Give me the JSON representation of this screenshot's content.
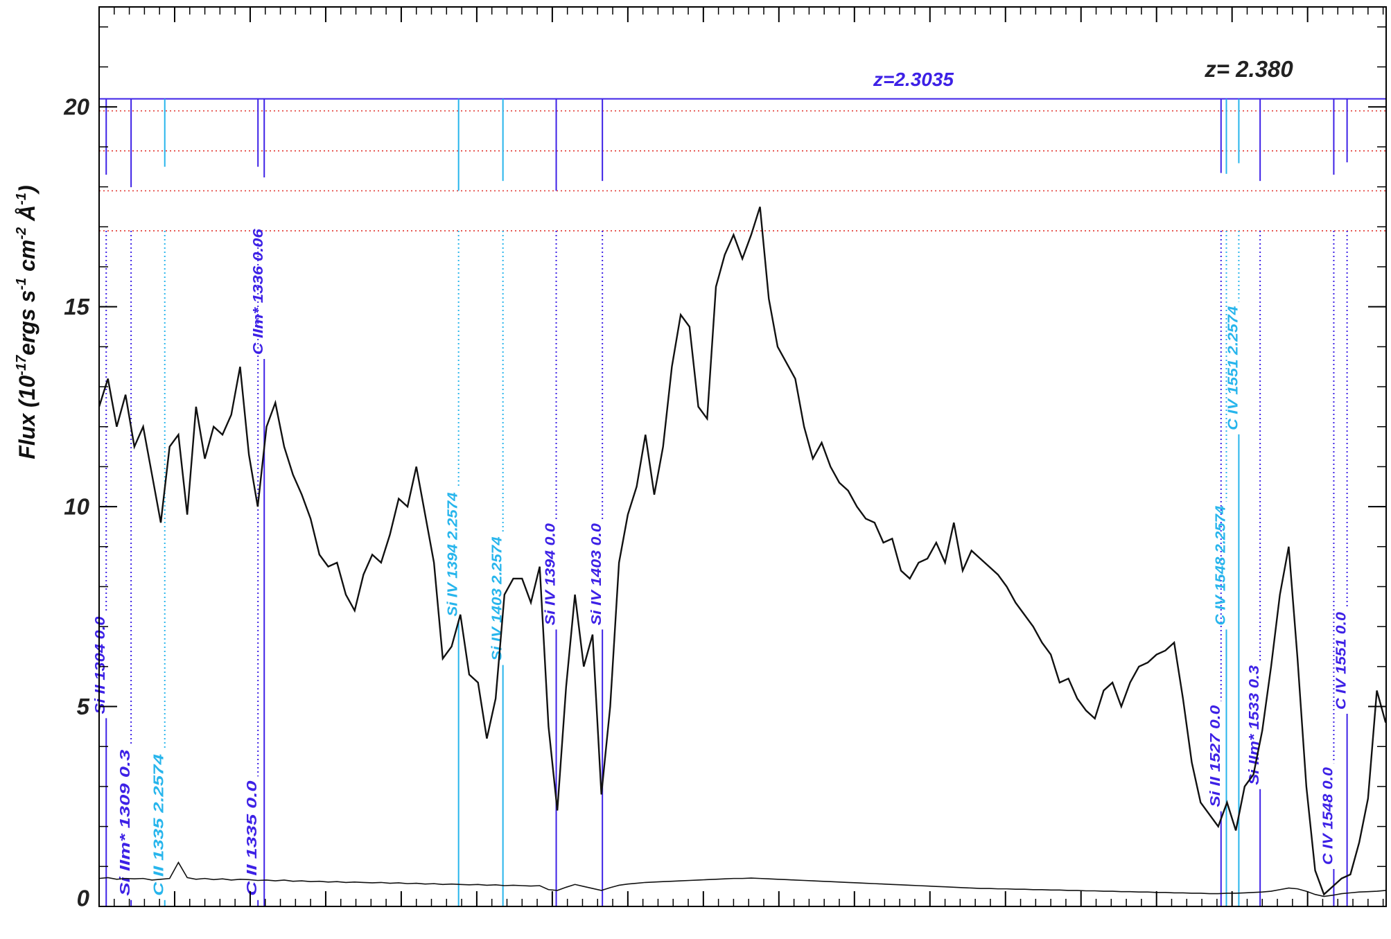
{
  "chart_data": {
    "type": "line",
    "ylabel": [
      "Flux (10",
      "-17",
      "ergs s",
      "-1",
      " cm",
      "-2",
      " Å",
      "-1",
      ")"
    ],
    "annotations": [
      {
        "text": "z=2.3035",
        "color": "#3d21e6"
      },
      {
        "text": "z= 2.380",
        "color": "#222222"
      }
    ],
    "xlim": [
      1305,
      1560.6
    ],
    "xticks": [
      1320,
      1335,
      1350,
      1365,
      1380,
      1395,
      1410,
      1425,
      1440,
      1455,
      1470,
      1485,
      1500,
      1515,
      1530,
      1545
    ],
    "ylim": [
      0,
      22.5
    ],
    "yticks": [
      0,
      5,
      10,
      15,
      20
    ],
    "x": [
      1305,
      1306.75,
      1308.5,
      1310.25,
      1312,
      1313.75,
      1315.5,
      1317.25,
      1319,
      1320.75,
      1322.5,
      1324.25,
      1326,
      1327.75,
      1329.5,
      1331.25,
      1333,
      1334.75,
      1336.5,
      1338.25,
      1340,
      1341.75,
      1343.5,
      1345.25,
      1347,
      1348.75,
      1350.5,
      1352.25,
      1354,
      1355.75,
      1357.5,
      1359.25,
      1361,
      1362.75,
      1364.5,
      1366.25,
      1368,
      1369.75,
      1371.5,
      1373.25,
      1375,
      1376.75,
      1378.5,
      1380.25,
      1382,
      1383.75,
      1385.5,
      1387.25,
      1389,
      1390.75,
      1392.5,
      1394.25,
      1396,
      1397.75,
      1399.5,
      1401.25,
      1403,
      1404.75,
      1406.5,
      1408.25,
      1410,
      1411.75,
      1413.5,
      1415.25,
      1417,
      1418.75,
      1420.5,
      1422.25,
      1424,
      1425.75,
      1427.5,
      1429.25,
      1431,
      1432.75,
      1434.5,
      1436.25,
      1438,
      1439.75,
      1441.5,
      1443.25,
      1445,
      1446.75,
      1448.5,
      1450.25,
      1452,
      1453.75,
      1455.5,
      1457.25,
      1459,
      1460.75,
      1462.5,
      1464.25,
      1466,
      1467.75,
      1469.5,
      1471.25,
      1473,
      1474.75,
      1476.5,
      1478.25,
      1480,
      1481.75,
      1483.5,
      1485.25,
      1487,
      1488.75,
      1490.5,
      1492.25,
      1494,
      1495.75,
      1497.5,
      1499.25,
      1501,
      1502.75,
      1504.5,
      1506.25,
      1508,
      1509.75,
      1511.5,
      1513.25,
      1515,
      1516.75,
      1518.5,
      1520.25,
      1522,
      1523.75,
      1525.5,
      1527.25,
      1529,
      1530.75,
      1532.5,
      1534.25,
      1536,
      1537.75,
      1539.5,
      1541.25,
      1543,
      1544.75,
      1546.5,
      1548.25,
      1550,
      1551.75,
      1553.5,
      1555.25,
      1557,
      1558.75,
      1560.5
    ],
    "series": [
      {
        "color": "#111111",
        "values": [
          12.5,
          13.2,
          12,
          12.8,
          11.5,
          12,
          10.8,
          9.6,
          11.5,
          11.8,
          9.8,
          12.5,
          11.2,
          12,
          11.8,
          12.3,
          13.5,
          11.3,
          10,
          12,
          12.6,
          11.5,
          10.8,
          10.3,
          9.7,
          8.8,
          8.5,
          8.6,
          7.8,
          7.4,
          8.3,
          8.8,
          8.6,
          9.3,
          10.2,
          10,
          11,
          9.8,
          8.6,
          6.2,
          6.5,
          7.3,
          5.8,
          5.6,
          4.2,
          5.2,
          7.8,
          8.2,
          8.2,
          7.6,
          8.5,
          4.5,
          2.4,
          5.5,
          7.8,
          6,
          6.8,
          2.8,
          5,
          8.6,
          9.8,
          10.5,
          11.8,
          10.3,
          11.5,
          13.5,
          14.8,
          14.5,
          12.5,
          12.2,
          15.5,
          16.3,
          16.8,
          16.2,
          16.8,
          17.5,
          15.2,
          14,
          13.6,
          13.2,
          12,
          11.2,
          11.6,
          11,
          10.6,
          10.4,
          10,
          9.7,
          9.6,
          9.1,
          9.2,
          8.4,
          8.2,
          8.6,
          8.7,
          9.1,
          8.6,
          9.6,
          8.4,
          8.9,
          8.7,
          8.5,
          8.3,
          8,
          7.6,
          7.3,
          7,
          6.6,
          6.3,
          5.6,
          5.7,
          5.2,
          4.9,
          4.7,
          5.4,
          5.6,
          5,
          5.6,
          6,
          6.1,
          6.3,
          6.4,
          6.6,
          5.2,
          3.6,
          2.6,
          2.3,
          2,
          2.6,
          1.9,
          3,
          3.3,
          4.4,
          6,
          7.8,
          9,
          6.2,
          3,
          0.9,
          0.3,
          0.5,
          0.7,
          0.8,
          1.6,
          2.7,
          5.4,
          4.6
        ]
      },
      {
        "color": "#111111",
        "values": [
          0.7,
          0.72,
          0.68,
          0.7,
          0.69,
          0.7,
          0.66,
          0.68,
          0.7,
          1.1,
          0.72,
          0.68,
          0.7,
          0.67,
          0.69,
          0.66,
          0.68,
          0.67,
          0.65,
          0.66,
          0.64,
          0.66,
          0.63,
          0.64,
          0.62,
          0.63,
          0.61,
          0.62,
          0.6,
          0.61,
          0.6,
          0.59,
          0.6,
          0.58,
          0.59,
          0.57,
          0.58,
          0.56,
          0.57,
          0.55,
          0.56,
          0.55,
          0.54,
          0.55,
          0.53,
          0.54,
          0.52,
          0.53,
          0.52,
          0.51,
          0.52,
          0.42,
          0.4,
          0.48,
          0.55,
          0.5,
          0.45,
          0.4,
          0.47,
          0.53,
          0.56,
          0.58,
          0.6,
          0.61,
          0.62,
          0.63,
          0.64,
          0.65,
          0.66,
          0.67,
          0.68,
          0.69,
          0.7,
          0.7,
          0.71,
          0.7,
          0.69,
          0.68,
          0.67,
          0.66,
          0.65,
          0.64,
          0.63,
          0.62,
          0.61,
          0.6,
          0.59,
          0.58,
          0.57,
          0.56,
          0.55,
          0.54,
          0.53,
          0.52,
          0.51,
          0.5,
          0.49,
          0.48,
          0.47,
          0.46,
          0.45,
          0.45,
          0.44,
          0.44,
          0.43,
          0.43,
          0.42,
          0.42,
          0.41,
          0.41,
          0.4,
          0.4,
          0.39,
          0.39,
          0.38,
          0.38,
          0.37,
          0.37,
          0.36,
          0.36,
          0.35,
          0.35,
          0.34,
          0.34,
          0.33,
          0.33,
          0.32,
          0.32,
          0.33,
          0.33,
          0.34,
          0.35,
          0.36,
          0.38,
          0.42,
          0.46,
          0.44,
          0.38,
          0.3,
          0.25,
          0.28,
          0.32,
          0.34,
          0.36,
          0.37,
          0.38,
          0.4
        ]
      }
    ],
    "hlines": [
      {
        "value": 20.2,
        "color": "#3d21e6",
        "style": "solid"
      },
      {
        "value": 19.9,
        "color": "#e0302a",
        "style": "dotted"
      },
      {
        "value": 18.9,
        "color": "#e0302a",
        "style": "dotted"
      },
      {
        "value": 17.9,
        "color": "#e0302a",
        "style": "dotted"
      },
      {
        "value": 16.9,
        "color": "#e0302a",
        "style": "dotted"
      }
    ],
    "lines": [
      {
        "x": 1306.41,
        "label": "Si II 1304 0.0",
        "color": "#3d21e6"
      },
      {
        "x": 1311.35,
        "label": "Si IIm* 1309 0.3",
        "color": "#3d21e6"
      },
      {
        "x": 1318.04,
        "label": "C II 1335 2.2574",
        "color": "#27b5ec"
      },
      {
        "x": 1336.55,
        "label": "C II 1335 0.0",
        "color": "#3d21e6"
      },
      {
        "x": 1337.79,
        "label": "C IIm* 1336 0.06",
        "color": "#3d21e6"
      },
      {
        "x": 1376.39,
        "label": "Si IV 1394 2.2574",
        "color": "#27b5ec"
      },
      {
        "x": 1385.2,
        "label": "Si IV 1403 2.2574",
        "color": "#27b5ec"
      },
      {
        "x": 1395.78,
        "label": "Si IV 1394 0.0",
        "color": "#3d21e6"
      },
      {
        "x": 1404.95,
        "label": "Si IV 1403 0.0",
        "color": "#3d21e6"
      },
      {
        "x": 1527.81,
        "label": "Si II 1527 0.0",
        "color": "#3d21e6"
      },
      {
        "x": 1528.87,
        "label": "C IV 1548 2.2574",
        "color": "#27b5ec"
      },
      {
        "x": 1531.34,
        "label": "C IV 1551 2.2574",
        "color": "#27b5ec"
      },
      {
        "x": 1535.57,
        "label": "Si IIm* 1533 0.3",
        "color": "#3d21e6"
      },
      {
        "x": 1550.2,
        "label": "C IV 1548 0.0",
        "color": "#3d21e6"
      },
      {
        "x": 1552.84,
        "label": "C IV 1551 0.0",
        "color": "#3d21e6"
      }
    ]
  }
}
